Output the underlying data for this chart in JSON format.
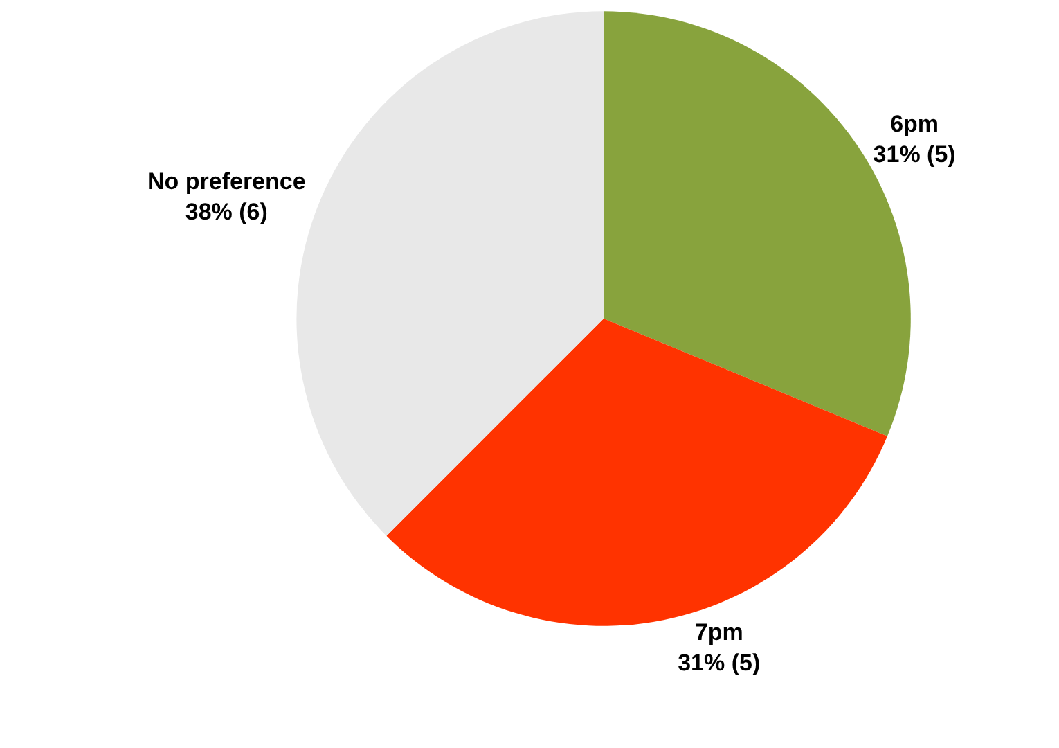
{
  "chart_data": {
    "type": "pie",
    "categories": [
      "6pm",
      "7pm",
      "No preference"
    ],
    "values": [
      5,
      5,
      6
    ],
    "value_labels": [
      "31% (5)",
      "31% (5)",
      "38% (6)"
    ],
    "colors": [
      "#88a33d",
      "#ff3300",
      "#e8e8e8"
    ],
    "legend": false
  }
}
